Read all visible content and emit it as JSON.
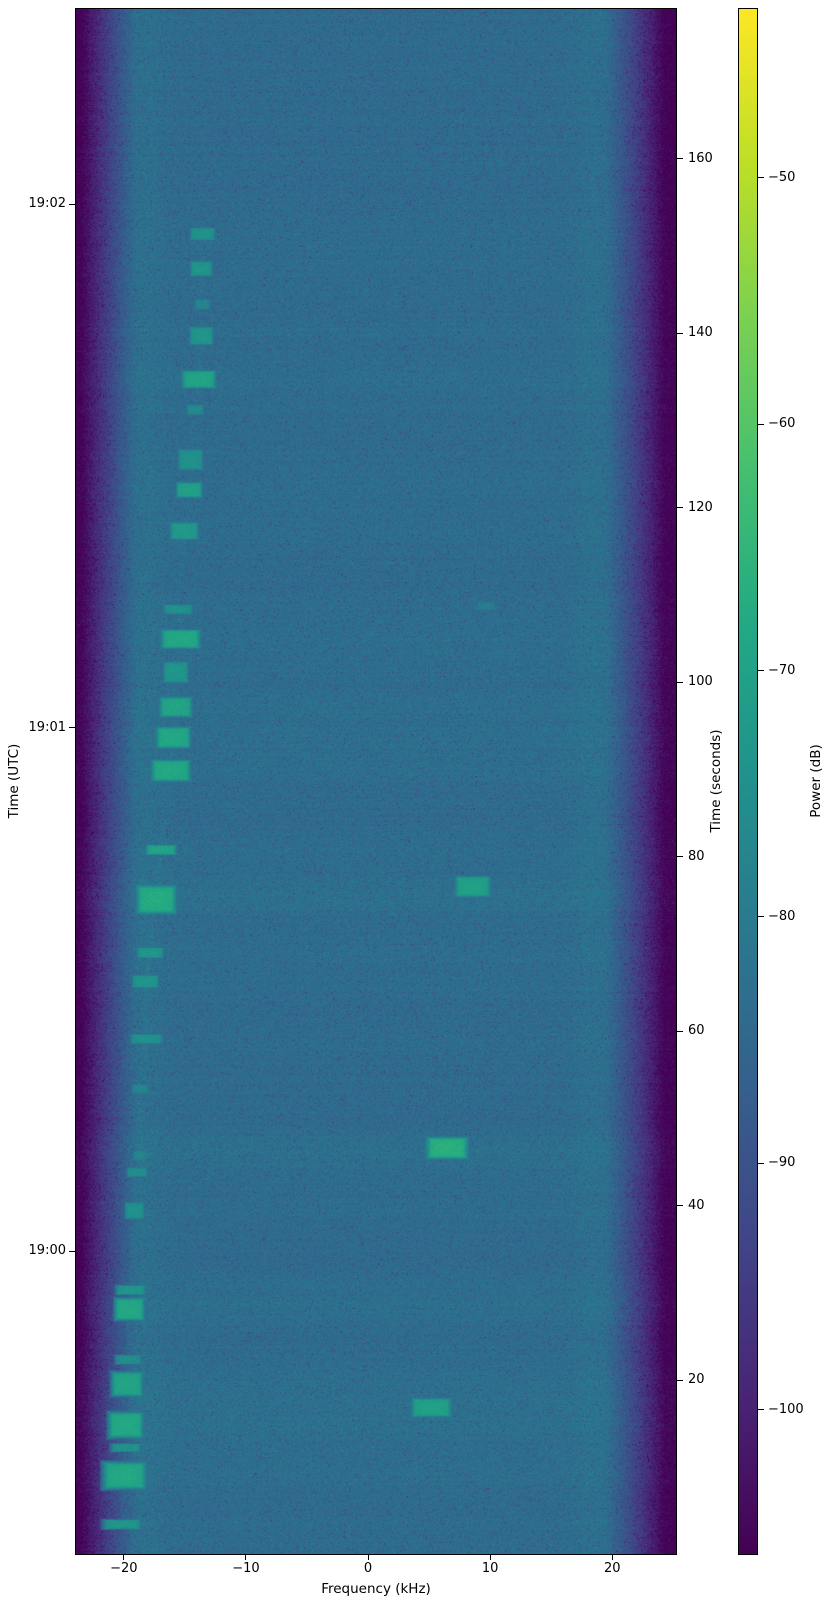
{
  "figure": {
    "background": "#ffffff",
    "foreground": "#000000"
  },
  "chart_data": {
    "type": "heatmap",
    "subtype": "radio-spectrogram-waterfall",
    "title": "",
    "xlabel": "Frequency (kHz)",
    "ylabel_left": "Time (UTC)",
    "ylabel_right": "Time (seconds)",
    "colorbar_label": "Power (dB)",
    "colormap": "viridis",
    "grid": false,
    "x_range_khz": [
      -24.0,
      25.3
    ],
    "x_ticks": [
      {
        "value": -20,
        "label": "−20"
      },
      {
        "value": -10,
        "label": "−10"
      },
      {
        "value": 0,
        "label": "0"
      },
      {
        "value": 10,
        "label": "10"
      },
      {
        "value": 20,
        "label": "20"
      }
    ],
    "time_range_s": [
      0,
      177.3
    ],
    "right_ticks_seconds": [
      {
        "value": 20,
        "label": "20"
      },
      {
        "value": 40,
        "label": "40"
      },
      {
        "value": 60,
        "label": "60"
      },
      {
        "value": 80,
        "label": "80"
      },
      {
        "value": 100,
        "label": "100"
      },
      {
        "value": 120,
        "label": "120"
      },
      {
        "value": 140,
        "label": "140"
      },
      {
        "value": 160,
        "label": "160"
      }
    ],
    "utc_ticks": [
      {
        "t_s": 154.8,
        "label": "19:02"
      },
      {
        "t_s": 94.8,
        "label": "19:01"
      },
      {
        "t_s": 34.8,
        "label": "19:00"
      }
    ],
    "power_range_db": [
      -105.9,
      -43.1
    ],
    "colorbar_ticks_db": [
      {
        "value": -50,
        "label": "−50"
      },
      {
        "value": -60,
        "label": "−60"
      },
      {
        "value": -70,
        "label": "−70"
      },
      {
        "value": -80,
        "label": "−80"
      },
      {
        "value": -90,
        "label": "−90"
      },
      {
        "value": -100,
        "label": "−100"
      }
    ],
    "noise_floor_db": -84,
    "speckle_db": 5.5,
    "passband_khz": [
      -19.0,
      19.5
    ],
    "band_edge_floor_db": -106,
    "bursts": [
      {
        "f_khz": -20.2,
        "t_s": 3.4,
        "bw_khz": 2.5,
        "dur_s": 0.9,
        "peak_db": -73
      },
      {
        "f_khz": -20.0,
        "t_s": 9.0,
        "bw_khz": 2.7,
        "dur_s": 2.4,
        "peak_db": -68
      },
      {
        "f_khz": -19.9,
        "t_s": 12.2,
        "bw_khz": 2.0,
        "dur_s": 0.8,
        "peak_db": -74
      },
      {
        "f_khz": -19.9,
        "t_s": 14.8,
        "bw_khz": 2.2,
        "dur_s": 2.3,
        "peak_db": -68
      },
      {
        "f_khz": -19.8,
        "t_s": 19.5,
        "bw_khz": 2.0,
        "dur_s": 2.2,
        "peak_db": -69
      },
      {
        "f_khz": -19.7,
        "t_s": 22.3,
        "bw_khz": 1.8,
        "dur_s": 0.9,
        "peak_db": -75
      },
      {
        "f_khz": -19.6,
        "t_s": 28.1,
        "bw_khz": 1.9,
        "dur_s": 2.0,
        "peak_db": -68
      },
      {
        "f_khz": -19.5,
        "t_s": 30.3,
        "bw_khz": 2.0,
        "dur_s": 0.9,
        "peak_db": -73
      },
      {
        "f_khz": -19.2,
        "t_s": 39.4,
        "bw_khz": 1.3,
        "dur_s": 1.6,
        "peak_db": -74
      },
      {
        "f_khz": -19.0,
        "t_s": 43.8,
        "bw_khz": 1.4,
        "dur_s": 0.9,
        "peak_db": -75
      },
      {
        "f_khz": -18.8,
        "t_s": 45.7,
        "bw_khz": 0.9,
        "dur_s": 0.9,
        "peak_db": -77
      },
      {
        "f_khz": -18.7,
        "t_s": 53.4,
        "bw_khz": 1.2,
        "dur_s": 0.8,
        "peak_db": -77
      },
      {
        "f_khz": -18.2,
        "t_s": 59.1,
        "bw_khz": 2.2,
        "dur_s": 0.9,
        "peak_db": -74
      },
      {
        "f_khz": -18.3,
        "t_s": 65.7,
        "bw_khz": 1.8,
        "dur_s": 1.2,
        "peak_db": -73
      },
      {
        "f_khz": -17.9,
        "t_s": 69.0,
        "bw_khz": 1.8,
        "dur_s": 1.0,
        "peak_db": -73
      },
      {
        "f_khz": -17.4,
        "t_s": 75.1,
        "bw_khz": 2.5,
        "dur_s": 2.5,
        "peak_db": -67
      },
      {
        "f_khz": -17.0,
        "t_s": 80.8,
        "bw_khz": 2.0,
        "dur_s": 0.9,
        "peak_db": -69
      },
      {
        "f_khz": -16.2,
        "t_s": 89.9,
        "bw_khz": 2.5,
        "dur_s": 1.9,
        "peak_db": -68
      },
      {
        "f_khz": -16.0,
        "t_s": 93.7,
        "bw_khz": 2.2,
        "dur_s": 1.9,
        "peak_db": -68
      },
      {
        "f_khz": -15.8,
        "t_s": 97.2,
        "bw_khz": 2.1,
        "dur_s": 1.8,
        "peak_db": -69
      },
      {
        "f_khz": -15.8,
        "t_s": 101.2,
        "bw_khz": 1.7,
        "dur_s": 2.0,
        "peak_db": -73
      },
      {
        "f_khz": -15.4,
        "t_s": 105.0,
        "bw_khz": 2.5,
        "dur_s": 1.7,
        "peak_db": -68
      },
      {
        "f_khz": -15.6,
        "t_s": 108.4,
        "bw_khz": 2.0,
        "dur_s": 0.9,
        "peak_db": -74
      },
      {
        "f_khz": -15.1,
        "t_s": 117.4,
        "bw_khz": 1.9,
        "dur_s": 1.6,
        "peak_db": -72
      },
      {
        "f_khz": -14.7,
        "t_s": 122.1,
        "bw_khz": 1.7,
        "dur_s": 1.4,
        "peak_db": -70
      },
      {
        "f_khz": -14.6,
        "t_s": 125.6,
        "bw_khz": 1.7,
        "dur_s": 2.0,
        "peak_db": -74
      },
      {
        "f_khz": -14.2,
        "t_s": 131.3,
        "bw_khz": 1.2,
        "dur_s": 1.0,
        "peak_db": -76
      },
      {
        "f_khz": -13.9,
        "t_s": 134.8,
        "bw_khz": 2.2,
        "dur_s": 1.6,
        "peak_db": -69
      },
      {
        "f_khz": -13.7,
        "t_s": 139.8,
        "bw_khz": 1.6,
        "dur_s": 1.7,
        "peak_db": -73
      },
      {
        "f_khz": -13.6,
        "t_s": 143.4,
        "bw_khz": 1.1,
        "dur_s": 1.0,
        "peak_db": -77
      },
      {
        "f_khz": -13.7,
        "t_s": 147.5,
        "bw_khz": 1.5,
        "dur_s": 1.4,
        "peak_db": -73
      },
      {
        "f_khz": -13.6,
        "t_s": 151.5,
        "bw_khz": 1.7,
        "dur_s": 1.2,
        "peak_db": -74
      },
      {
        "f_khz": 5.2,
        "t_s": 16.8,
        "bw_khz": 2.6,
        "dur_s": 1.7,
        "peak_db": -70
      },
      {
        "f_khz": 6.5,
        "t_s": 46.6,
        "bw_khz": 2.6,
        "dur_s": 1.9,
        "peak_db": -66
      },
      {
        "f_khz": 8.6,
        "t_s": 76.6,
        "bw_khz": 2.3,
        "dur_s": 1.9,
        "peak_db": -70
      },
      {
        "f_khz": 9.7,
        "t_s": 108.8,
        "bw_khz": 1.3,
        "dur_s": 0.8,
        "peak_db": -79
      }
    ],
    "drift_trace": {
      "description": "faint narrow carrier drifting with the left burst column",
      "amp_db": 1.8,
      "sigma_khz": 0.16
    }
  }
}
